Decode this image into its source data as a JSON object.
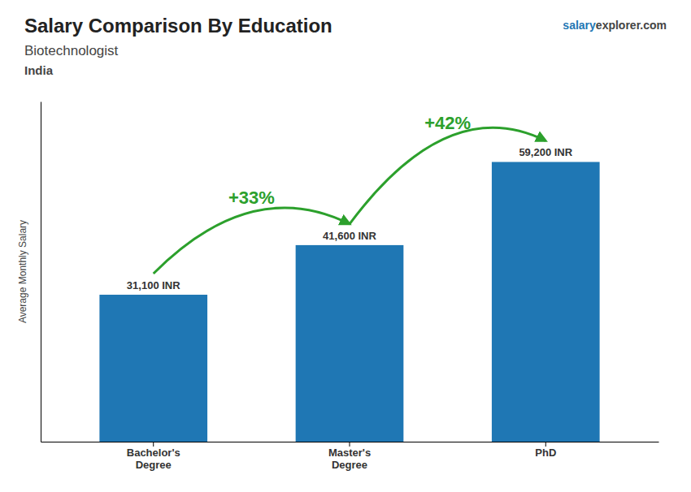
{
  "chart_data": {
    "type": "bar",
    "title": "Salary Comparison By Education",
    "subtitle": "Biotechnologist",
    "annotations": [
      "India",
      "salary",
      "explorer.com"
    ],
    "ylabel": "Average Monthly Salary",
    "categories": [
      "Bachelor's\nDegree",
      "Master's\nDegree",
      "PhD"
    ],
    "values": [
      31100,
      41600,
      59200
    ],
    "value_labels": [
      "31,100 INR",
      "41,600 INR",
      "59,200 INR"
    ],
    "data_labels": true,
    "change_labels": [
      "+33%",
      "+42%"
    ],
    "ylim": [
      0,
      72000
    ],
    "tick_labels": "x"
  }
}
